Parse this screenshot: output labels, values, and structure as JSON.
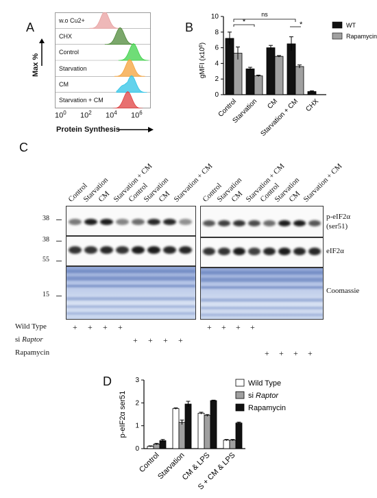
{
  "panel_letters": {
    "a": "A",
    "b": "B",
    "c": "C",
    "d": "D"
  },
  "panel_a": {
    "ylabel": "Max %",
    "xlabel": "Protein Synthesis",
    "rows": [
      {
        "label": "w.o Cu2+",
        "color": "#e8a0a0"
      },
      {
        "label": "CHX",
        "color": "#4f8a3a"
      },
      {
        "label": "Control",
        "color": "#3fd24a"
      },
      {
        "label": "Starvation",
        "color": "#f4a23a"
      },
      {
        "label": "CM",
        "color": "#2ec3e6"
      },
      {
        "label": "Starvation + CM",
        "color": "#e04040"
      }
    ],
    "ticks": [
      {
        "base": "10",
        "exp": "0"
      },
      {
        "base": "10",
        "exp": "2"
      },
      {
        "base": "10",
        "exp": "4"
      },
      {
        "base": "10",
        "exp": "6"
      }
    ]
  },
  "chart_data": [
    {
      "type": "bar",
      "panel": "B",
      "categories": [
        "Control",
        "Starvation",
        "CM",
        "Starvation + CM",
        "CHX"
      ],
      "series": [
        {
          "name": "WT",
          "color": "#111111",
          "values": [
            7.2,
            3.3,
            6.0,
            6.5,
            0.4
          ],
          "errors": [
            0.8,
            0.2,
            0.3,
            0.9,
            0.1
          ]
        },
        {
          "name": "Rapamycin",
          "color": "#a0a0a0",
          "values": [
            5.3,
            2.4,
            4.9,
            3.6,
            null
          ],
          "errors": [
            0.8,
            0.1,
            0.1,
            0.2,
            null
          ]
        }
      ],
      "ylabel": "gMFI (x10",
      "ylabel_sup": "6",
      "ylabel_end": ")",
      "ylim": [
        0,
        10
      ],
      "yticks": [
        "0",
        "2",
        "4",
        "6",
        "8",
        "10"
      ],
      "annotations": [
        {
          "text": "*",
          "from": 0,
          "to": 1
        },
        {
          "text": "ns",
          "from": 0,
          "to": 3
        },
        {
          "text": "*",
          "from": 3,
          "to": 3.3
        }
      ]
    },
    {
      "type": "bar",
      "panel": "D",
      "categories": [
        "Control",
        "Starvation",
        "CM & LPS",
        "S + CM & LPS"
      ],
      "series": [
        {
          "name": "Wild Type",
          "color": "#ffffff",
          "values": [
            0.1,
            1.75,
            1.55,
            0.37
          ],
          "errors": [
            0.02,
            0.03,
            0.04,
            0.03
          ]
        },
        {
          "name": "si Raptor",
          "color": "#a0a0a0",
          "values": [
            0.2,
            1.15,
            1.45,
            0.37
          ],
          "errors": [
            0.03,
            0.1,
            0.04,
            0.03
          ]
        },
        {
          "name": "Rapamycin",
          "color": "#111111",
          "values": [
            0.35,
            1.95,
            2.1,
            1.12
          ],
          "errors": [
            0.05,
            0.12,
            0.02,
            0.04
          ]
        }
      ],
      "ylabel": "p-eIF2α ser51",
      "ylim": [
        0,
        3
      ],
      "yticks": [
        "0",
        "1",
        "2",
        "3"
      ]
    }
  ],
  "panel_c": {
    "lanes_left": [
      "Control",
      "Starvation",
      "CM",
      "Starvation + CM",
      "Control",
      "Starvation",
      "CM",
      "Starvation + CM"
    ],
    "lanes_right": [
      "Control",
      "Starvation",
      "CM",
      "Starvation + CM",
      "Control",
      "Starvation",
      "CM",
      "Starvation + CM"
    ],
    "mw_top": "38",
    "mw_mid1": "38",
    "mw_mid2": "55",
    "mw_coom": "15",
    "blot_labels": {
      "p_eif2a": "p-eIF2α",
      "p_eif2a_sub": "(ser51)",
      "eif2a": "eIF2α",
      "coomassie": "Coomassie"
    },
    "conditions": [
      {
        "label": "Wild Type",
        "italic": "",
        "cols": [
          0,
          1,
          2,
          3,
          8,
          9,
          10,
          11
        ]
      },
      {
        "label": "si ",
        "italic": "Raptor",
        "cols": [
          4,
          5,
          6,
          7
        ]
      },
      {
        "label": "Rapamycin",
        "italic": "",
        "cols": [
          12,
          13,
          14,
          15
        ]
      }
    ],
    "plus": "+"
  },
  "legend_b": {
    "wt": "WT",
    "rapa": "Rapamycin"
  },
  "legend_d": {
    "wt": "Wild Type",
    "si": "si ",
    "si_italic": "Raptor",
    "rapa": "Rapamycin"
  }
}
